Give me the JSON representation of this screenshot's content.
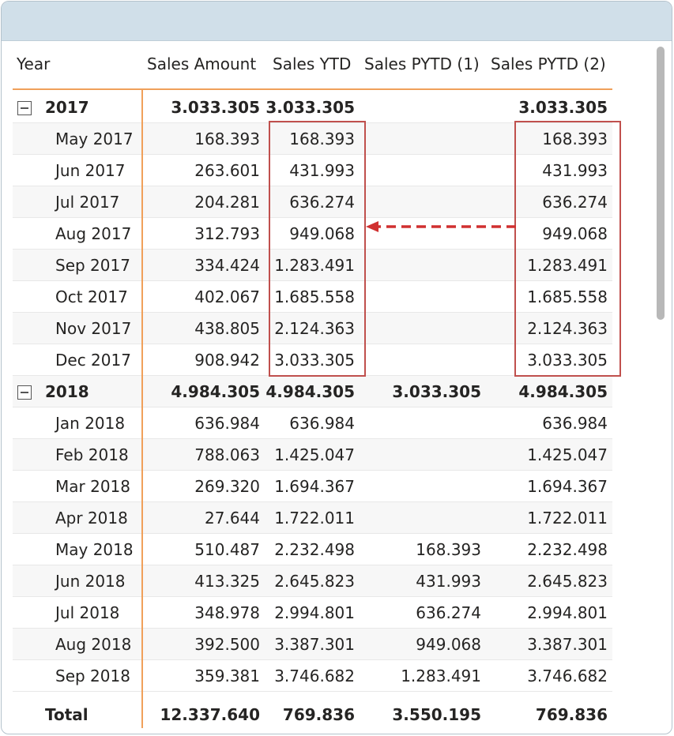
{
  "columns": {
    "year": "Year",
    "sales_amount": "Sales Amount",
    "sales_ytd": "Sales YTD",
    "sales_pytd1": "Sales PYTD (1)",
    "sales_pytd2": "Sales PYTD (2)"
  },
  "rows": [
    {
      "label": "2017",
      "sa": "3.033.305",
      "ytd": "3.033.305",
      "p1": "",
      "p2": "3.033.305"
    },
    {
      "label": "May 2017",
      "sa": "168.393",
      "ytd": "168.393",
      "p1": "",
      "p2": "168.393"
    },
    {
      "label": "Jun 2017",
      "sa": "263.601",
      "ytd": "431.993",
      "p1": "",
      "p2": "431.993"
    },
    {
      "label": "Jul 2017",
      "sa": "204.281",
      "ytd": "636.274",
      "p1": "",
      "p2": "636.274"
    },
    {
      "label": "Aug 2017",
      "sa": "312.793",
      "ytd": "949.068",
      "p1": "",
      "p2": "949.068"
    },
    {
      "label": "Sep 2017",
      "sa": "334.424",
      "ytd": "1.283.491",
      "p1": "",
      "p2": "1.283.491"
    },
    {
      "label": "Oct 2017",
      "sa": "402.067",
      "ytd": "1.685.558",
      "p1": "",
      "p2": "1.685.558"
    },
    {
      "label": "Nov 2017",
      "sa": "438.805",
      "ytd": "2.124.363",
      "p1": "",
      "p2": "2.124.363"
    },
    {
      "label": "Dec 2017",
      "sa": "908.942",
      "ytd": "3.033.305",
      "p1": "",
      "p2": "3.033.305"
    },
    {
      "label": "2018",
      "sa": "4.984.305",
      "ytd": "4.984.305",
      "p1": "3.033.305",
      "p2": "4.984.305"
    },
    {
      "label": "Jan 2018",
      "sa": "636.984",
      "ytd": "636.984",
      "p1": "",
      "p2": "636.984"
    },
    {
      "label": "Feb 2018",
      "sa": "788.063",
      "ytd": "1.425.047",
      "p1": "",
      "p2": "1.425.047"
    },
    {
      "label": "Mar 2018",
      "sa": "269.320",
      "ytd": "1.694.367",
      "p1": "",
      "p2": "1.694.367"
    },
    {
      "label": "Apr 2018",
      "sa": "27.644",
      "ytd": "1.722.011",
      "p1": "",
      "p2": "1.722.011"
    },
    {
      "label": "May 2018",
      "sa": "510.487",
      "ytd": "2.232.498",
      "p1": "168.393",
      "p2": "2.232.498"
    },
    {
      "label": "Jun 2018",
      "sa": "413.325",
      "ytd": "2.645.823",
      "p1": "431.993",
      "p2": "2.645.823"
    },
    {
      "label": "Jul 2018",
      "sa": "348.978",
      "ytd": "2.994.801",
      "p1": "636.274",
      "p2": "2.994.801"
    },
    {
      "label": "Aug 2018",
      "sa": "392.500",
      "ytd": "3.387.301",
      "p1": "949.068",
      "p2": "3.387.301"
    },
    {
      "label": "Sep 2018",
      "sa": "359.381",
      "ytd": "3.746.682",
      "p1": "1.283.491",
      "p2": "3.746.682"
    }
  ],
  "total": {
    "label": "Total",
    "sa": "12.337.640",
    "ytd": "769.836",
    "p1": "3.550.195",
    "p2": "769.836"
  },
  "colors": {
    "accent_line": "#f0a05a",
    "highlight_box": "#c0504d",
    "arrow": "#d03030",
    "titlebar": "#d0dfe9"
  }
}
